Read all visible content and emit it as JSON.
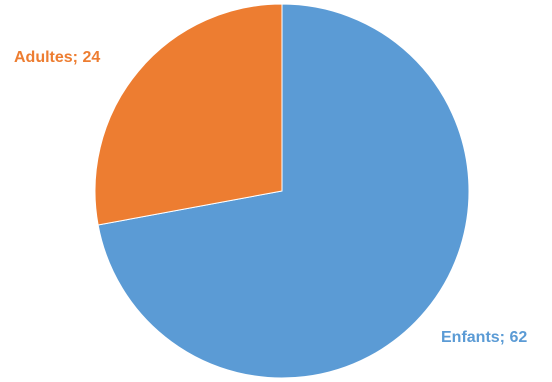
{
  "chart_data": {
    "type": "pie",
    "slices": [
      {
        "category": "Enfants",
        "value": 62,
        "label": "Enfants; 62",
        "color": "#5B9BD5"
      },
      {
        "category": "Adultes",
        "value": 24,
        "label": "Adultes; 24",
        "color": "#ED7D31"
      }
    ],
    "start_angle": "12 o'clock",
    "direction": "clockwise",
    "data_labels": "category; value",
    "legend": "none"
  }
}
